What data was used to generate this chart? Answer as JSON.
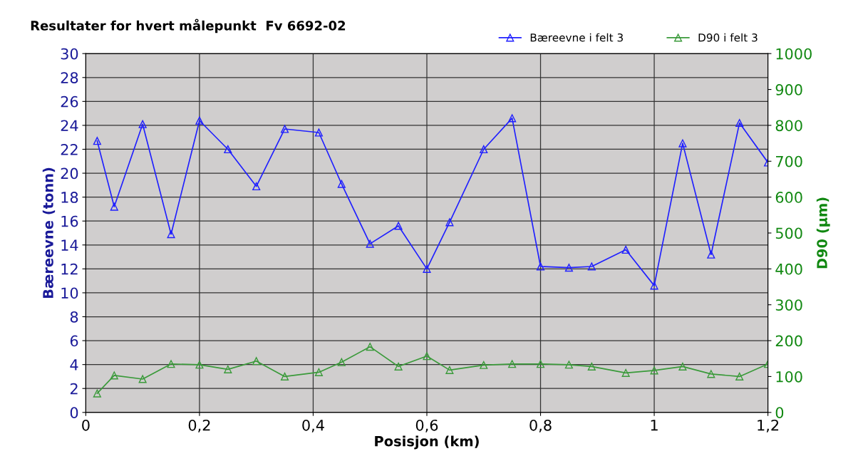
{
  "chart_data": {
    "type": "line",
    "title": "Resultater for hvert målepunkt  Fv 6692-02",
    "xlabel": "Posisjon (km)",
    "ylabel": "Bæreevne (tonn)",
    "y2label": "D90 (µm)",
    "x": [
      0.02,
      0.05,
      0.1,
      0.15,
      0.2,
      0.25,
      0.3,
      0.35,
      0.41,
      0.45,
      0.5,
      0.55,
      0.6,
      0.64,
      0.7,
      0.75,
      0.8,
      0.85,
      0.89,
      0.95,
      1.0,
      1.05,
      1.1,
      1.15,
      1.2
    ],
    "series": [
      {
        "name": "Bæreevne i felt 3",
        "color": "#2020ff",
        "values": [
          22.7,
          17.2,
          24.1,
          14.9,
          24.4,
          22.0,
          18.9,
          23.7,
          23.4,
          19.1,
          14.1,
          15.6,
          12.0,
          15.9,
          22.0,
          24.6,
          12.2,
          12.1,
          12.2,
          13.6,
          10.6,
          22.5,
          13.2,
          24.2,
          20.9
        ]
      },
      {
        "name": "D90 i felt 3",
        "color": "#3a9a3a",
        "axis": "y2",
        "values": [
          53,
          103,
          93,
          135,
          133,
          120,
          143,
          100,
          112,
          140,
          183,
          128,
          157,
          118,
          132,
          135,
          135,
          133,
          128,
          110,
          117,
          128,
          107,
          100,
          135
        ]
      }
    ],
    "xlim": [
      0,
      1.2
    ],
    "xticks": [
      0,
      {
        "value": 0.2,
        "label": "0,2"
      },
      {
        "value": 0.4,
        "label": "0,4"
      },
      {
        "value": 0.6,
        "label": "0,6"
      },
      {
        "value": 0.8,
        "label": "0,8"
      },
      1,
      {
        "value": 1.2,
        "label": "1,2"
      }
    ],
    "ylim": [
      0,
      30
    ],
    "yticks": [
      0,
      2,
      4,
      6,
      8,
      10,
      12,
      14,
      16,
      18,
      20,
      22,
      24,
      26,
      28,
      30
    ],
    "y2lim": [
      0,
      1000
    ],
    "y2ticks": [
      0,
      100,
      200,
      300,
      400,
      500,
      600,
      700,
      800,
      900,
      1000
    ],
    "grid": true,
    "legend": "top right",
    "marker": "triangle",
    "line_style": "solid"
  }
}
